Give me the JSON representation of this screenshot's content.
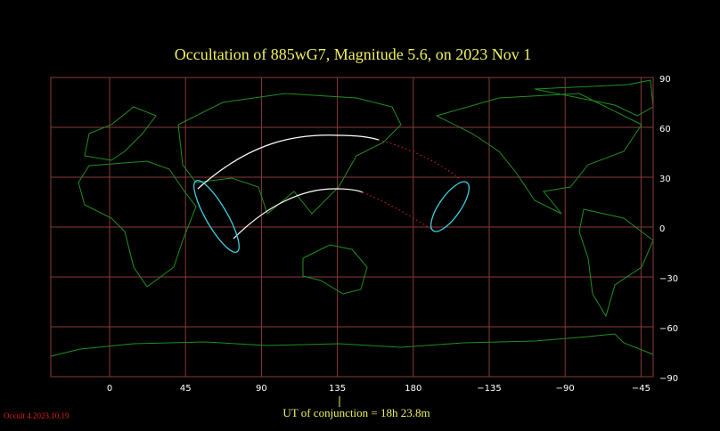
{
  "title": "Occultation  of  885wG7,      Magnitude 5.6,   on  2023 Nov  1",
  "map": {
    "lat_labels": [
      "90",
      "60",
      "30",
      "0",
      "−30",
      "−60",
      "−90"
    ],
    "lon_labels": [
      "0",
      "45",
      "90",
      "135",
      "180",
      "−135",
      "−90",
      "−45"
    ]
  },
  "conjunction": "UT of conjunction = 18h 23.8m",
  "version": "Occult 4.2023.10.19"
}
